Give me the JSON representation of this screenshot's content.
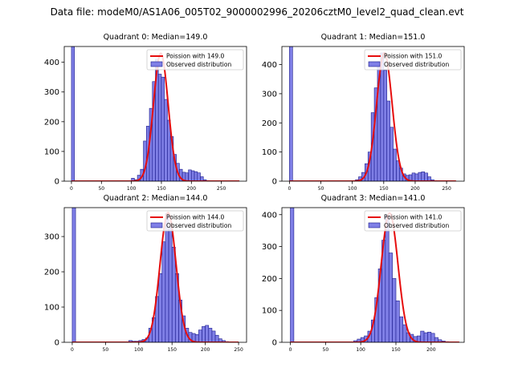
{
  "suptitle": "Data file: modeM0/AS1A06_005T02_9000002996_20206cztM0_level2_quad_clean.evt",
  "colors": {
    "bar_fill": "#7f7fe6",
    "bar_edge": "#1a1a8c",
    "poisson_line": "#e60d0d",
    "axis": "#000000"
  },
  "chart_data": [
    {
      "type": "bar",
      "title": "Quadrant 0: Median=149.0",
      "median": 149.0,
      "xlim": [
        -12,
        292
      ],
      "ylim": [
        0,
        453
      ],
      "xticks": [
        0,
        50,
        100,
        150,
        200,
        250
      ],
      "yticks": [
        0,
        100,
        200,
        300,
        400
      ],
      "bin_width": 5.0,
      "hist": {
        "edges": [
          0,
          100,
          105,
          110,
          115,
          120,
          125,
          130,
          135,
          140,
          145,
          150,
          155,
          160,
          165,
          170,
          175,
          180,
          185,
          190,
          195,
          200,
          205,
          210,
          215,
          220,
          225,
          230,
          235
        ],
        "counts": [
          453,
          10,
          5,
          20,
          40,
          135,
          185,
          245,
          335,
          410,
          360,
          350,
          275,
          205,
          150,
          90,
          60,
          40,
          30,
          28,
          38,
          35,
          32,
          28,
          15,
          5,
          2,
          0
        ]
      },
      "poisson": {
        "mean": 149.0,
        "peak": 430,
        "x_range": [
          0,
          280
        ]
      },
      "legend": {
        "poisson_label": "Poission with 149.0",
        "observed_label": "Observed distribution",
        "loc": "upper right"
      }
    },
    {
      "type": "bar",
      "title": "Quadrant 1: Median=151.0",
      "median": 151.0,
      "xlim": [
        -12,
        278
      ],
      "ylim": [
        0,
        462
      ],
      "xticks": [
        0,
        50,
        100,
        150,
        200,
        250
      ],
      "yticks": [
        0,
        100,
        200,
        300,
        400
      ],
      "bin_width": 5.0,
      "hist": {
        "edges": [
          0,
          105,
          110,
          115,
          120,
          125,
          130,
          135,
          140,
          145,
          150,
          155,
          160,
          165,
          170,
          175,
          180,
          185,
          190,
          195,
          200,
          205,
          210,
          215,
          220,
          225,
          230,
          235,
          240
        ],
        "counts": [
          462,
          5,
          15,
          30,
          60,
          100,
          235,
          320,
          410,
          440,
          380,
          275,
          185,
          110,
          70,
          45,
          25,
          20,
          22,
          28,
          25,
          30,
          32,
          28,
          15,
          5,
          2,
          0
        ]
      },
      "poisson": {
        "mean": 151.0,
        "peak": 440,
        "x_range": [
          0,
          265
        ]
      },
      "legend": {
        "poisson_label": "Poission with 151.0",
        "observed_label": "Observed distribution",
        "loc": "upper right"
      }
    },
    {
      "type": "bar",
      "title": "Quadrant 2: Median=144.0",
      "median": 144.0,
      "xlim": [
        -12,
        262
      ],
      "ylim": [
        0,
        382
      ],
      "xticks": [
        0,
        50,
        100,
        150,
        200,
        250
      ],
      "yticks": [
        0,
        100,
        200,
        300
      ],
      "bin_width": 5.0,
      "hist": {
        "edges": [
          0,
          85,
          90,
          95,
          100,
          105,
          110,
          115,
          120,
          125,
          130,
          135,
          140,
          145,
          150,
          155,
          160,
          165,
          170,
          175,
          180,
          185,
          190,
          195,
          200,
          205,
          210,
          215,
          220,
          225,
          230,
          235
        ],
        "counts": [
          382,
          5,
          3,
          3,
          5,
          8,
          12,
          40,
          70,
          130,
          195,
          285,
          365,
          325,
          270,
          195,
          120,
          75,
          40,
          28,
          25,
          22,
          35,
          45,
          48,
          40,
          32,
          20,
          10,
          5,
          2,
          0
        ]
      },
      "poisson": {
        "mean": 144.0,
        "peak": 368,
        "x_range": [
          0,
          250
        ]
      },
      "legend": {
        "poisson_label": "Poission with 144.0",
        "observed_label": "Observed distribution",
        "loc": "upper right"
      }
    },
    {
      "type": "bar",
      "title": "Quadrant 3: Median=141.0",
      "median": 141.0,
      "xlim": [
        -12,
        247
      ],
      "ylim": [
        0,
        422
      ],
      "xticks": [
        0,
        50,
        100,
        150,
        200
      ],
      "yticks": [
        0,
        100,
        200,
        300,
        400
      ],
      "bin_width": 5.0,
      "hist": {
        "edges": [
          0,
          90,
          95,
          100,
          105,
          110,
          115,
          120,
          125,
          130,
          135,
          140,
          145,
          150,
          155,
          160,
          165,
          170,
          175,
          180,
          185,
          190,
          195,
          200,
          205,
          210,
          215,
          220,
          225,
          230
        ],
        "counts": [
          422,
          5,
          10,
          15,
          20,
          35,
          70,
          140,
          230,
          320,
          400,
          280,
          200,
          130,
          80,
          55,
          30,
          25,
          18,
          20,
          35,
          30,
          32,
          28,
          15,
          8,
          4,
          2,
          0
        ]
      },
      "poisson": {
        "mean": 141.0,
        "peak": 405,
        "x_range": [
          0,
          240
        ]
      },
      "legend": {
        "poisson_label": "Poission with 141.0",
        "observed_label": "Observed distribution",
        "loc": "upper right"
      }
    }
  ]
}
